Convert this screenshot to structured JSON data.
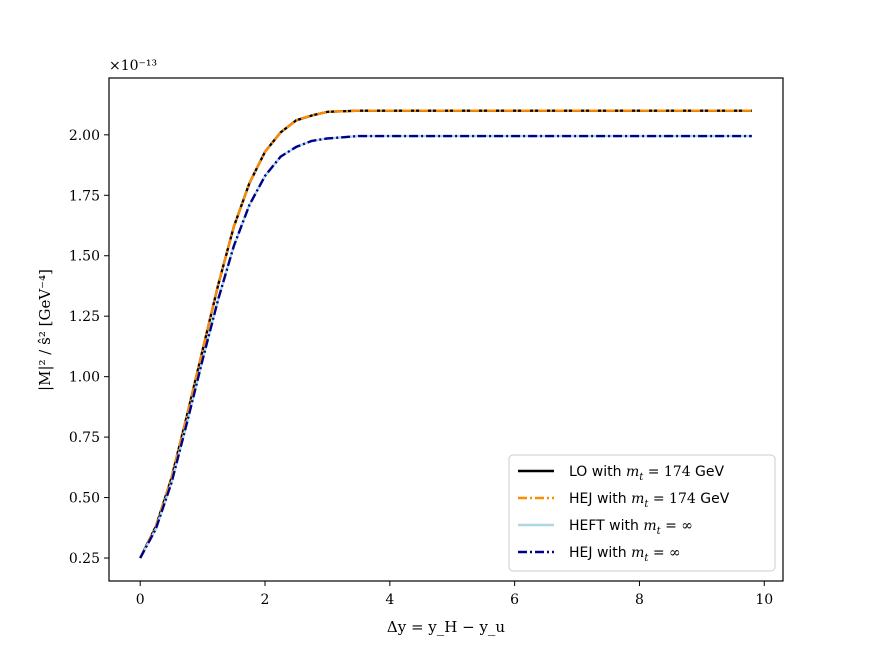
{
  "chart_data": {
    "type": "line",
    "xlabel": "Δy = y_H − y_u",
    "ylabel": "|M|² / ŝ² [GeV⁻⁴]",
    "y_multiplier": "×10⁻¹³",
    "xlim": [
      -0.5,
      10.3
    ],
    "ylim": [
      0.155,
      2.235
    ],
    "xticks": [
      0,
      2,
      4,
      6,
      8,
      10
    ],
    "xtick_labels": [
      "0",
      "2",
      "4",
      "6",
      "8",
      "10"
    ],
    "yticks": [
      0.25,
      0.5,
      0.75,
      1.0,
      1.25,
      1.5,
      1.75,
      2.0
    ],
    "ytick_labels": [
      "0.25",
      "0.50",
      "0.75",
      "1.00",
      "1.25",
      "1.50",
      "1.75",
      "2.00"
    ],
    "grid": false,
    "legend_position": "lower-right",
    "x": [
      0,
      0.25,
      0.5,
      0.75,
      1.0,
      1.25,
      1.5,
      1.75,
      2.0,
      2.25,
      2.5,
      2.75,
      3.0,
      3.5,
      4.0,
      5.0,
      6.0,
      7.0,
      8.0,
      9.0,
      9.8
    ],
    "series": [
      {
        "name": "LO with m_t = 174 GeV",
        "legend": {
          "prefix": "LO with ",
          "var": "m",
          "sub": "t",
          "rel": " = 174",
          "unit": " GeV"
        },
        "color": "#000000",
        "style": "solid",
        "values": [
          0.25,
          0.38,
          0.58,
          0.84,
          1.11,
          1.38,
          1.62,
          1.8,
          1.93,
          2.01,
          2.06,
          2.08,
          2.095,
          2.1,
          2.1,
          2.1,
          2.1,
          2.1,
          2.1,
          2.1,
          2.1
        ]
      },
      {
        "name": "HEJ with m_t = 174 GeV",
        "legend": {
          "prefix": "HEJ with ",
          "var": "m",
          "sub": "t",
          "rel": " = 174",
          "unit": " GeV"
        },
        "color": "#ff8c00",
        "style": "dashdot",
        "values": [
          0.25,
          0.38,
          0.58,
          0.84,
          1.11,
          1.38,
          1.62,
          1.8,
          1.93,
          2.01,
          2.06,
          2.08,
          2.095,
          2.1,
          2.1,
          2.1,
          2.1,
          2.1,
          2.1,
          2.1,
          2.1
        ]
      },
      {
        "name": "HEFT with m_t = ∞",
        "legend": {
          "prefix": "HEFT with ",
          "var": "m",
          "sub": "t",
          "rel": " = ∞",
          "unit": ""
        },
        "color": "#add8e6",
        "style": "solid",
        "values": [
          0.25,
          0.37,
          0.56,
          0.81,
          1.07,
          1.32,
          1.54,
          1.71,
          1.83,
          1.91,
          1.95,
          1.975,
          1.985,
          1.995,
          1.995,
          1.995,
          1.995,
          1.995,
          1.995,
          1.995,
          1.995
        ]
      },
      {
        "name": "HEJ with m_t = ∞",
        "legend": {
          "prefix": "HEJ with ",
          "var": "m",
          "sub": "t",
          "rel": " = ∞",
          "unit": ""
        },
        "color": "#00008b",
        "style": "dashdot",
        "values": [
          0.25,
          0.37,
          0.56,
          0.81,
          1.07,
          1.32,
          1.54,
          1.71,
          1.83,
          1.91,
          1.95,
          1.975,
          1.985,
          1.995,
          1.995,
          1.995,
          1.995,
          1.995,
          1.995,
          1.995,
          1.995
        ]
      }
    ]
  }
}
